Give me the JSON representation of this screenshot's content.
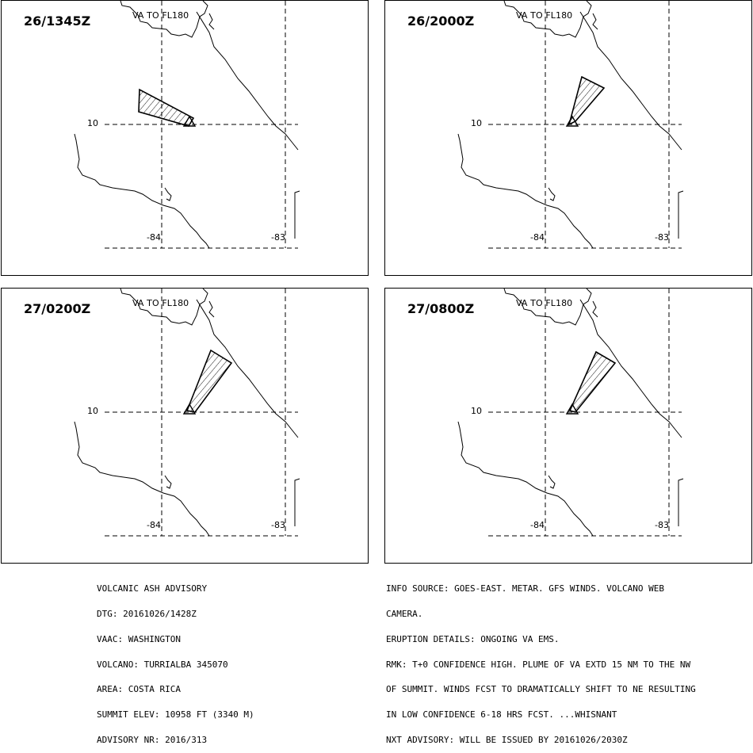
{
  "panels": [
    {
      "time": "26/1345Z",
      "level_label": "VA TO FL180",
      "grid": {
        "lat": "10",
        "lon_west": "-84",
        "lon_east": "-83"
      }
    },
    {
      "time": "26/2000Z",
      "level_label": "VA TO FL180",
      "grid": {
        "lat": "10",
        "lon_west": "-84",
        "lon_east": "-83"
      }
    },
    {
      "time": "27/0200Z",
      "level_label": "VA TO FL180",
      "grid": {
        "lat": "10",
        "lon_west": "-84",
        "lon_east": "-83"
      }
    },
    {
      "time": "27/0800Z",
      "level_label": "VA TO FL180",
      "grid": {
        "lat": "10",
        "lon_west": "-84",
        "lon_east": "-83"
      }
    }
  ],
  "advisory_left": [
    "VOLCANIC ASH ADVISORY",
    "DTG: 20161026/1428Z",
    "VAAC: WASHINGTON",
    "VOLCANO: TURRIALBA 345070",
    "AREA: COSTA RICA",
    "SUMMIT ELEV: 10958 FT (3340 M)",
    "ADVISORY NR: 2016/313"
  ],
  "advisory_right": [
    "INFO SOURCE: GOES-EAST. METAR. GFS WINDS. VOLCANO WEB",
    "CAMERA.",
    "ERUPTION DETAILS: ONGOING VA EMS.",
    "RMK: T+0 CONFIDENCE HIGH. PLUME OF VA EXTD 15 NM TO THE NW",
    "OF SUMMIT. WINDS FCST TO DRAMATICALLY SHIFT TO NE RESULTING",
    "IN LOW CONFIDENCE 6-18 HRS FCST. ...WHISNANT",
    "NXT ADVISORY: WILL BE ISSUED BY 20161026/2030Z"
  ]
}
